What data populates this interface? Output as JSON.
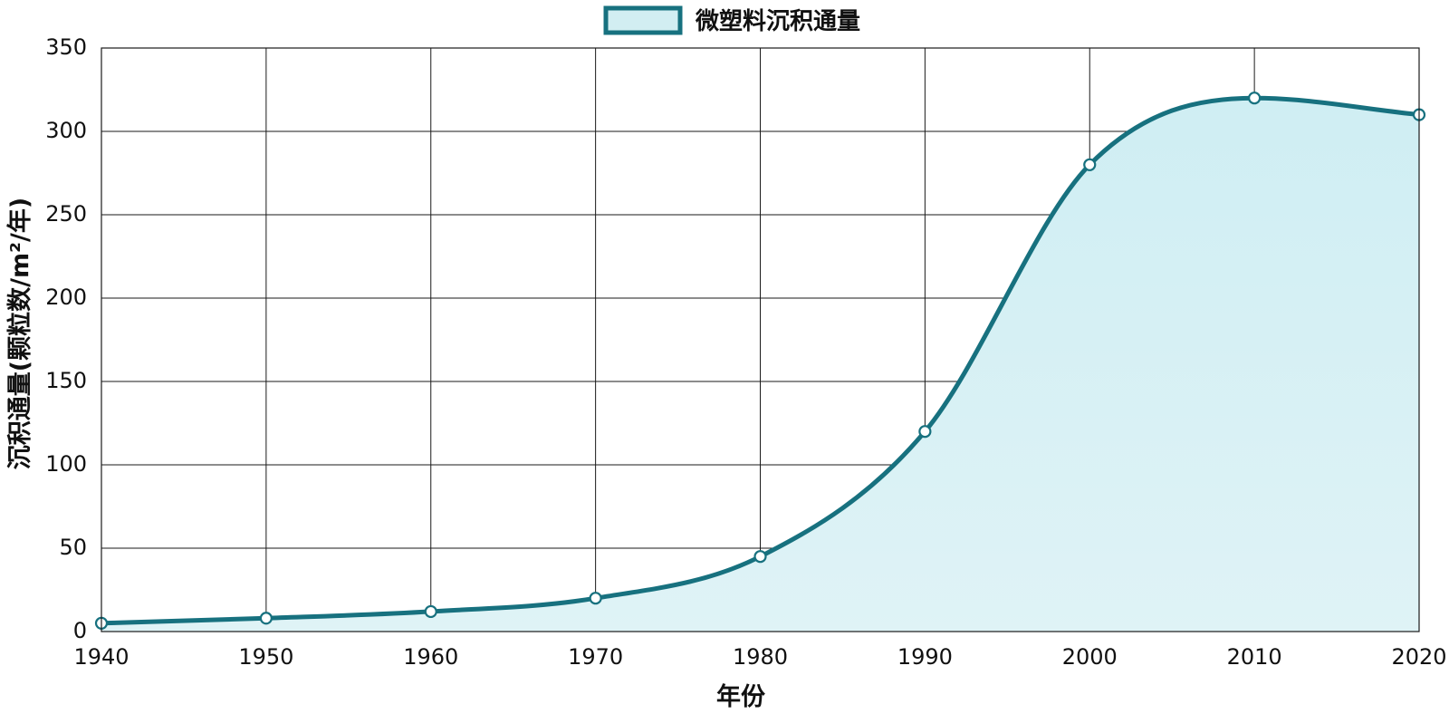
{
  "chart_data": {
    "type": "area",
    "title": "",
    "xlabel": "年份",
    "ylabel": "沉积通量(颗粒数/m²/年)",
    "xlim": [
      1940,
      2020
    ],
    "ylim": [
      0,
      350
    ],
    "x_ticks": [
      "1940",
      "1950",
      "1960",
      "1970",
      "1980",
      "1990",
      "2000",
      "2010",
      "2020"
    ],
    "y_ticks": [
      "0",
      "50",
      "100",
      "150",
      "200",
      "250",
      "300",
      "350"
    ],
    "grid": true,
    "legend_position": "top-center",
    "series": [
      {
        "name": "微塑料沉积通量",
        "x": [
          1940,
          1950,
          1960,
          1970,
          1980,
          1990,
          2000,
          2010,
          2020
        ],
        "values": [
          5,
          8,
          12,
          20,
          45,
          120,
          280,
          320,
          310
        ],
        "line_color": "#17717f",
        "fill_color": "#d2eef2"
      }
    ]
  }
}
